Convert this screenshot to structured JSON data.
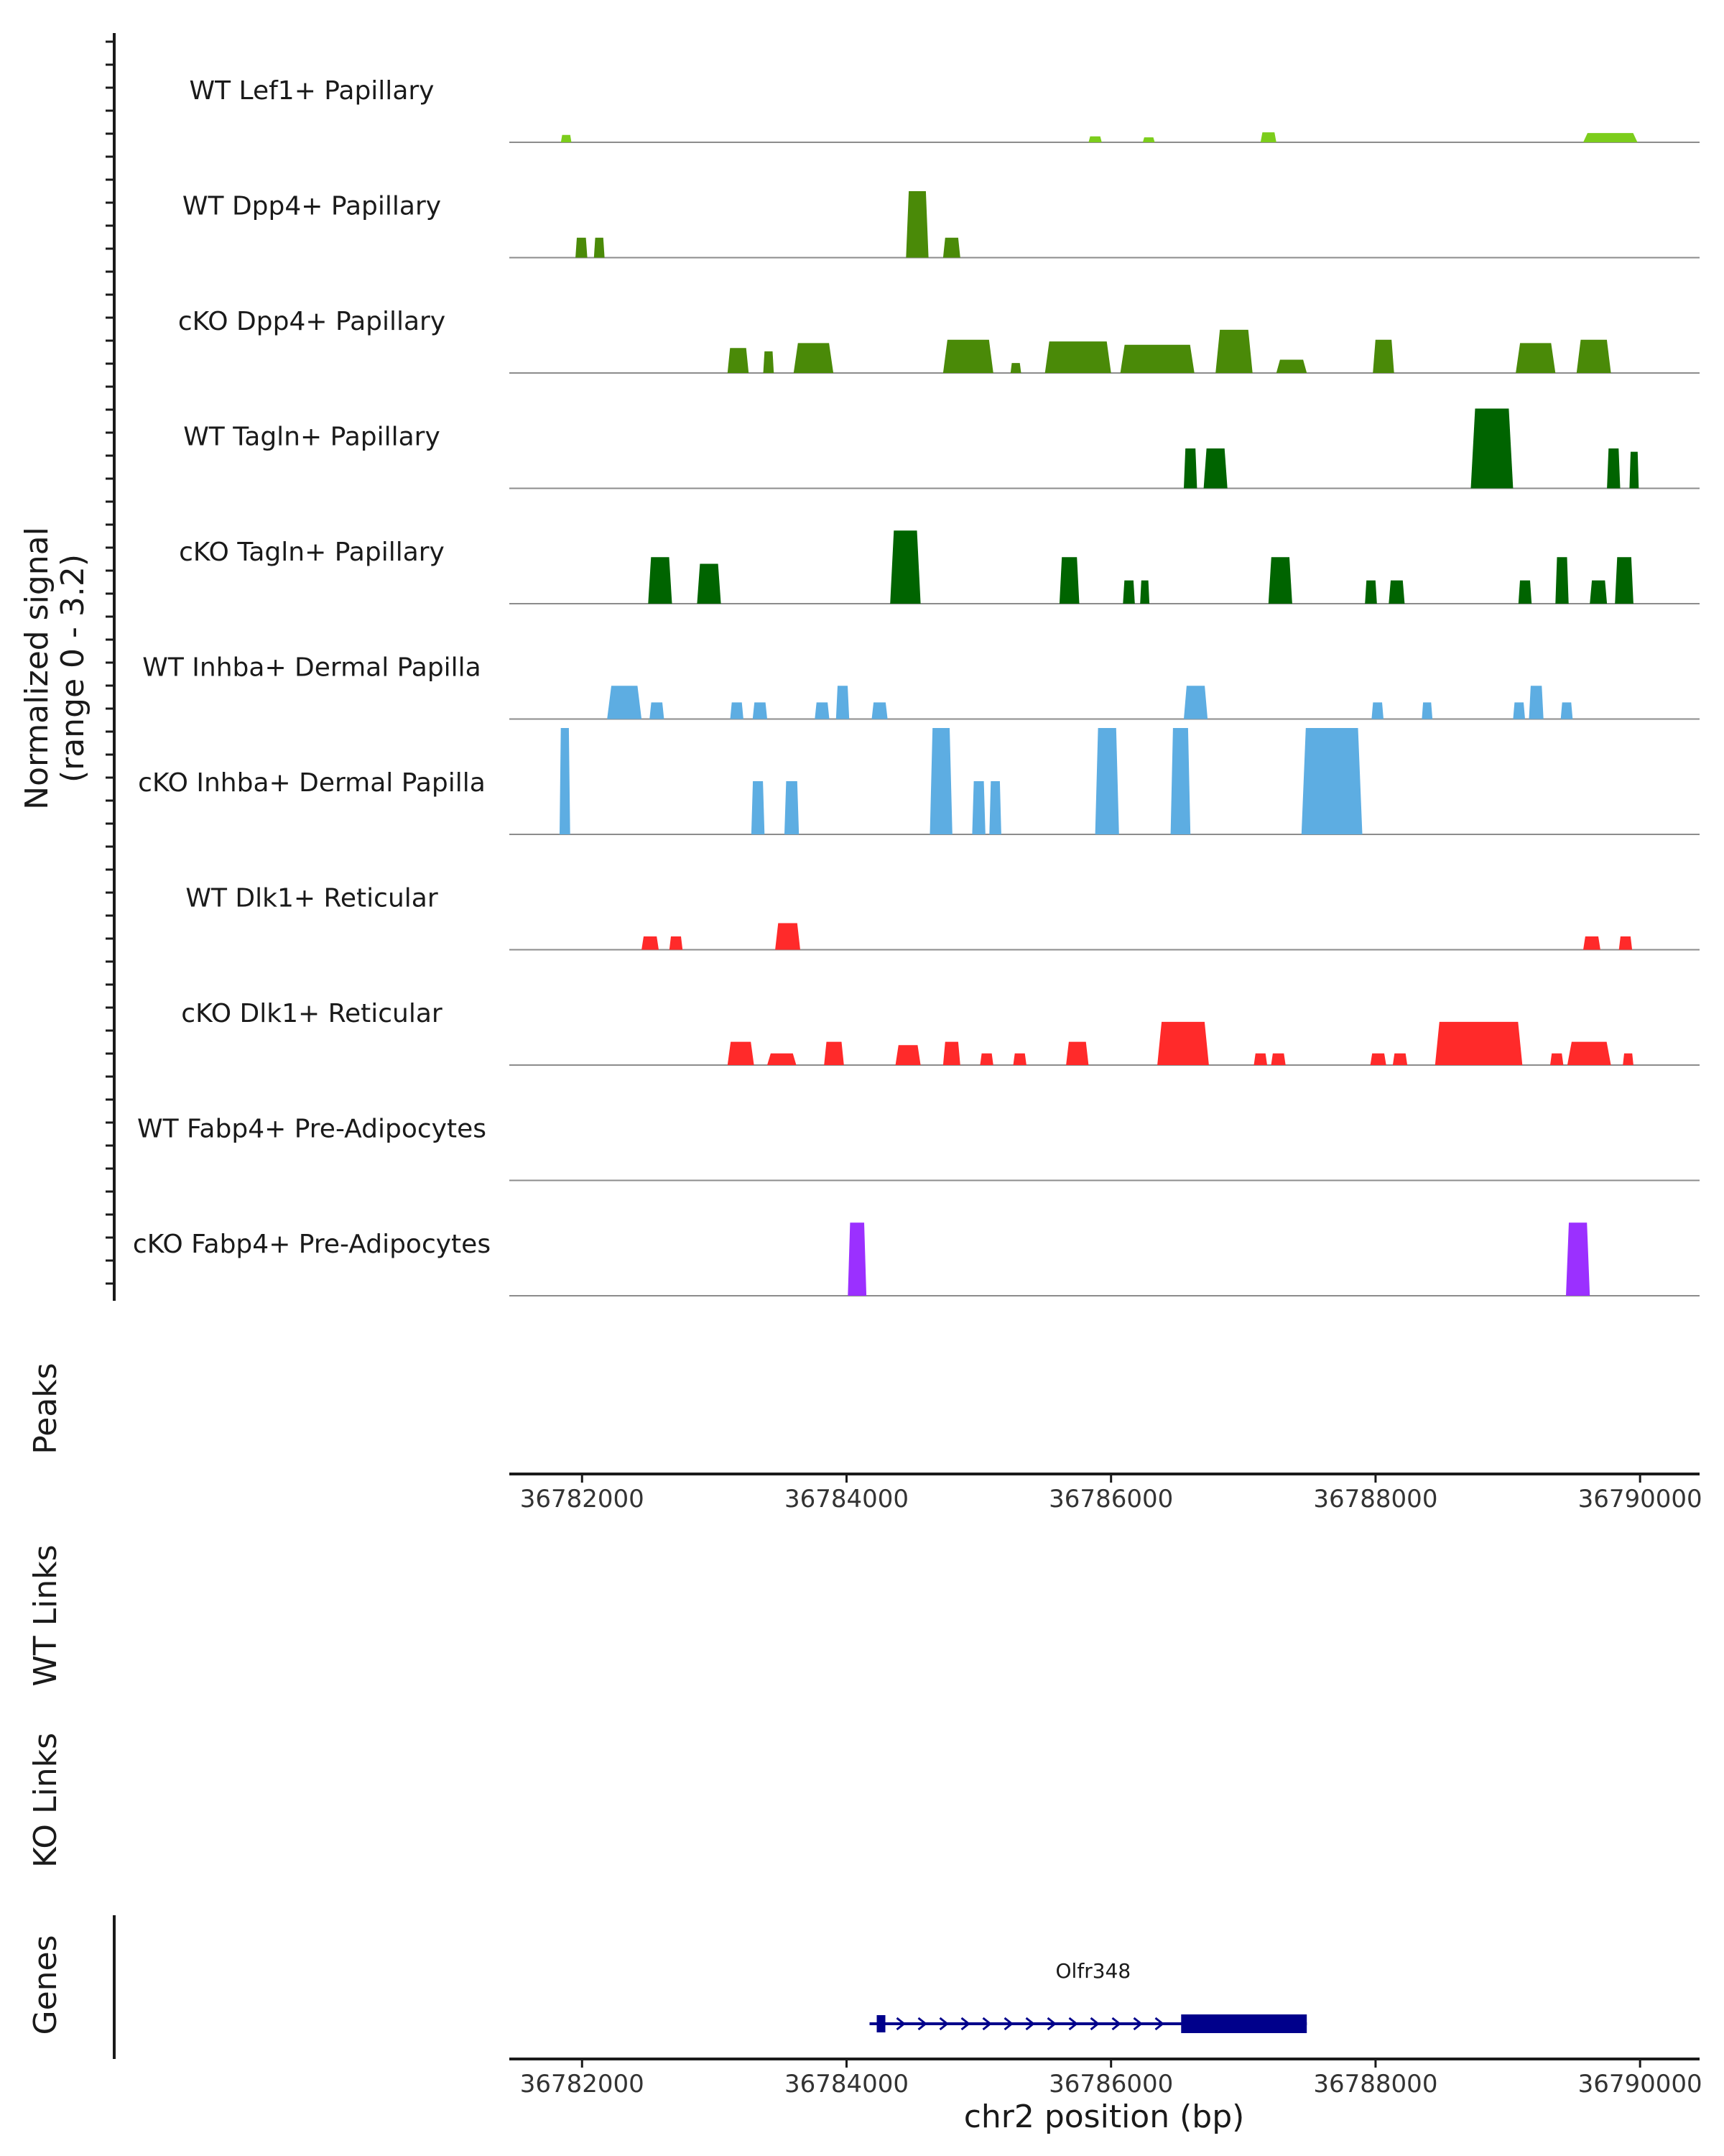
{
  "chart_data": {
    "type": "area",
    "title": "",
    "chromosome": "chr2",
    "xlabel": "chr2 position (bp)",
    "xlim": [
      36781450,
      36790450
    ],
    "x_ticks": [
      36782000,
      36784000,
      36786000,
      36788000,
      36790000
    ],
    "x_tick_labels": [
      "36782000",
      "36784000",
      "36786000",
      "36788000",
      "36790000"
    ],
    "coverage": {
      "ylabel": "Normalized signal",
      "yrange_label": "(range 0 - 3.2)",
      "ylim": [
        0,
        3.2
      ],
      "tracks": [
        {
          "name": "WT Lef1+ Papillary",
          "color": "#7ccd1c",
          "peaks": [
            [
              36781840,
              36781920,
              0.22
            ],
            [
              36785830,
              36785930,
              0.18
            ],
            [
              36786240,
              36786330,
              0.15
            ],
            [
              36787130,
              36787250,
              0.3
            ],
            [
              36789570,
              36789980,
              0.28
            ]
          ]
        },
        {
          "name": "WT Dpp4+ Papillary",
          "color": "#4a8a08",
          "peaks": [
            [
              36781950,
              36782040,
              0.6
            ],
            [
              36782090,
              36782170,
              0.6
            ],
            [
              36784450,
              36784620,
              2.0
            ],
            [
              36784730,
              36784860,
              0.6
            ]
          ]
        },
        {
          "name": "cKO Dpp4+ Papillary",
          "color": "#4a8a08",
          "peaks": [
            [
              36783100,
              36783260,
              0.75
            ],
            [
              36783370,
              36783450,
              0.65
            ],
            [
              36783600,
              36783900,
              0.9
            ],
            [
              36784730,
              36785110,
              1.0
            ],
            [
              36785240,
              36785320,
              0.3
            ],
            [
              36785500,
              36786000,
              0.95
            ],
            [
              36786070,
              36786630,
              0.85
            ],
            [
              36786790,
              36787070,
              1.3
            ],
            [
              36787250,
              36787480,
              0.4
            ],
            [
              36787980,
              36788140,
              1.0
            ],
            [
              36789060,
              36789360,
              0.9
            ],
            [
              36789520,
              36789780,
              1.0
            ]
          ]
        },
        {
          "name": "WT Tagln+ Papillary",
          "color": "#006400",
          "peaks": [
            [
              36786550,
              36786650,
              1.2
            ],
            [
              36786700,
              36786880,
              1.2
            ],
            [
              36788720,
              36789040,
              2.4
            ],
            [
              36789750,
              36789850,
              1.2
            ],
            [
              36789920,
              36789990,
              1.1
            ]
          ]
        },
        {
          "name": "cKO Tagln+ Papillary",
          "color": "#006400",
          "peaks": [
            [
              36782500,
              36782680,
              1.4
            ],
            [
              36782870,
              36783050,
              1.2
            ],
            [
              36784330,
              36784560,
              2.2
            ],
            [
              36785610,
              36785760,
              1.4
            ],
            [
              36786090,
              36786180,
              0.7
            ],
            [
              36786220,
              36786290,
              0.7
            ],
            [
              36787190,
              36787370,
              1.4
            ],
            [
              36787920,
              36788010,
              0.7
            ],
            [
              36788100,
              36788220,
              0.7
            ],
            [
              36789080,
              36789180,
              0.7
            ],
            [
              36789360,
              36789460,
              1.4
            ],
            [
              36789620,
              36789750,
              0.7
            ],
            [
              36789810,
              36789950,
              1.4
            ]
          ]
        },
        {
          "name": "WT Inhba+ Dermal Papilla",
          "color": "#5dade2",
          "peaks": [
            [
              36782190,
              36782450,
              1.0
            ],
            [
              36782510,
              36782620,
              0.5
            ],
            [
              36783120,
              36783220,
              0.5
            ],
            [
              36783290,
              36783400,
              0.5
            ],
            [
              36783760,
              36783870,
              0.5
            ],
            [
              36783920,
              36784020,
              1.0
            ],
            [
              36784190,
              36784310,
              0.5
            ],
            [
              36786550,
              36786730,
              1.0
            ],
            [
              36787970,
              36788060,
              0.5
            ],
            [
              36788350,
              36788430,
              0.5
            ],
            [
              36789040,
              36789130,
              0.5
            ],
            [
              36789160,
              36789270,
              1.0
            ],
            [
              36789400,
              36789490,
              0.5
            ]
          ]
        },
        {
          "name": "cKO Inhba+ Dermal Papilla",
          "color": "#5dade2",
          "peaks": [
            [
              36781830,
              36781910,
              3.2
            ],
            [
              36783280,
              36783380,
              1.6
            ],
            [
              36783530,
              36783640,
              1.6
            ],
            [
              36784630,
              36784800,
              3.2
            ],
            [
              36784950,
              36785050,
              1.6
            ],
            [
              36785080,
              36785170,
              1.6
            ],
            [
              36785880,
              36786060,
              3.2
            ],
            [
              36786450,
              36786600,
              3.2
            ],
            [
              36787440,
              36787900,
              3.2
            ]
          ]
        },
        {
          "name": "WT Dlk1+ Reticular",
          "color": "#ff2a2a",
          "peaks": [
            [
              36782450,
              36782580,
              0.4
            ],
            [
              36782660,
              36782760,
              0.4
            ],
            [
              36783460,
              36783650,
              0.8
            ],
            [
              36789570,
              36789700,
              0.4
            ],
            [
              36789840,
              36789940,
              0.4
            ]
          ]
        },
        {
          "name": "cKO Dlk1+ Reticular",
          "color": "#ff2a2a",
          "peaks": [
            [
              36783100,
              36783300,
              0.7
            ],
            [
              36783400,
              36783620,
              0.35
            ],
            [
              36783830,
              36783980,
              0.7
            ],
            [
              36784370,
              36784560,
              0.6
            ],
            [
              36784730,
              36784860,
              0.7
            ],
            [
              36785010,
              36785110,
              0.35
            ],
            [
              36785260,
              36785360,
              0.35
            ],
            [
              36785660,
              36785830,
              0.7
            ],
            [
              36786350,
              36786740,
              1.3
            ],
            [
              36787080,
              36787180,
              0.35
            ],
            [
              36787210,
              36787320,
              0.35
            ],
            [
              36787960,
              36788080,
              0.35
            ],
            [
              36788130,
              36788240,
              0.35
            ],
            [
              36788450,
              36789110,
              1.3
            ],
            [
              36789320,
              36789420,
              0.35
            ],
            [
              36789450,
              36789780,
              0.7
            ],
            [
              36789870,
              36789950,
              0.35
            ]
          ]
        },
        {
          "name": "WT Fabp4+ Pre-Adipocytes",
          "color": "#9b30ff",
          "peaks": []
        },
        {
          "name": "cKO Fabp4+ Pre-Adipocytes",
          "color": "#9b30ff",
          "peaks": [
            [
              36784010,
              36784150,
              2.2
            ],
            [
              36789440,
              36789620,
              2.2
            ]
          ]
        }
      ]
    },
    "panels": {
      "peaks": "Peaks",
      "wt_links": "WT Links",
      "ko_links": "KO Links",
      "genes": "Genes"
    },
    "genes": [
      {
        "name": "Olfr348",
        "start": 36784250,
        "end": 36787480,
        "strand": "+",
        "cds_start": 36786530,
        "cds_end": 36787480,
        "color": "#00008b"
      }
    ]
  }
}
